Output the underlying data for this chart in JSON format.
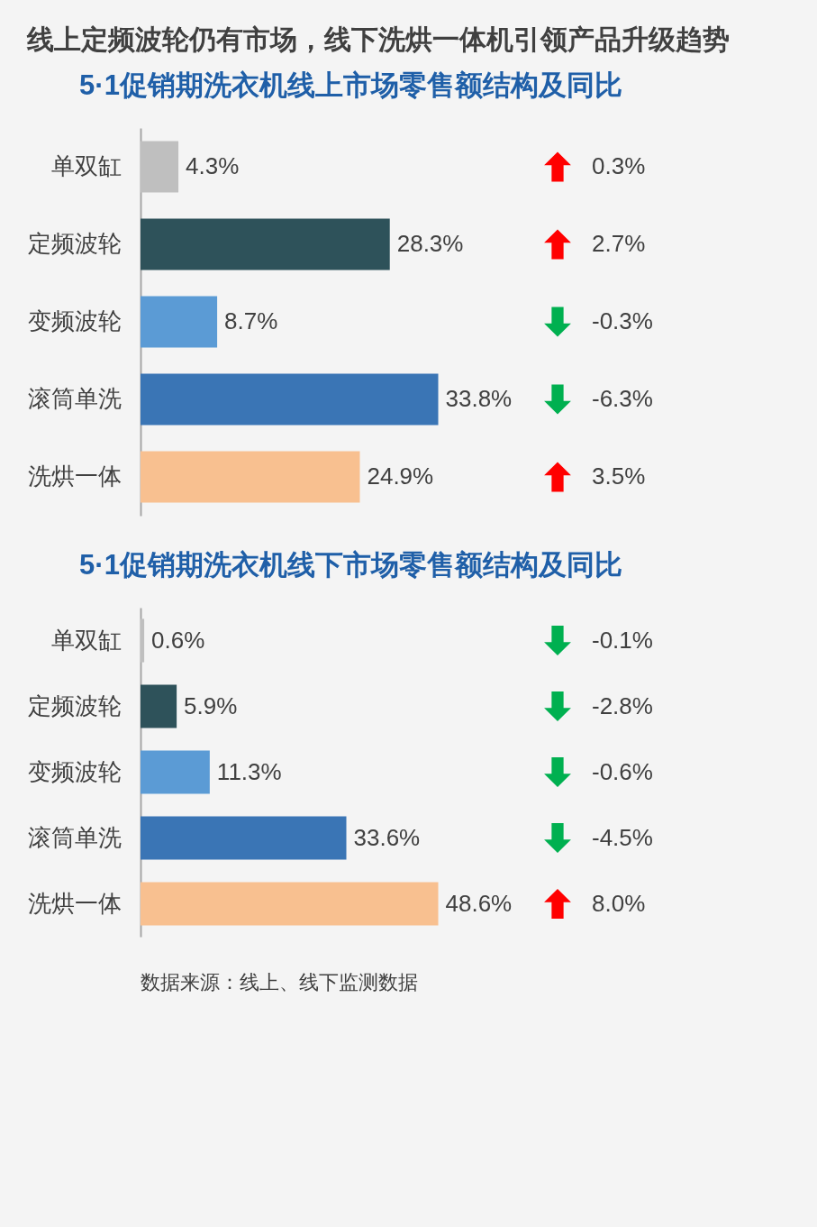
{
  "chart_data": [
    {
      "type": "bar",
      "orientation": "horizontal",
      "title": "线上定频波轮仍有市场，线下洗烘一体机引领产品升级趋势",
      "subtitle": "5·1促销期洗衣机线上市场零售额结构及同比",
      "categories": [
        "单双缸",
        "定频波轮",
        "变频波轮",
        "滚筒单洗",
        "洗烘一体"
      ],
      "values": [
        4.3,
        28.3,
        8.7,
        33.8,
        24.9
      ],
      "value_labels": [
        "4.3%",
        "28.3%",
        "8.7%",
        "33.8%",
        "24.9%"
      ],
      "colors": [
        "#bfbfbf",
        "#2e525a",
        "#5b9bd5",
        "#3a75b5",
        "#f8c090"
      ]
    },
    {
      "type": "other",
      "values": [
        0.3,
        2.7,
        -0.3,
        -6.3,
        3.5
      ],
      "value_labels": [
        "0.3%",
        "2.7%",
        "-0.3%",
        "-6.3%",
        "3.5%"
      ]
    },
    {
      "type": "bar",
      "orientation": "horizontal",
      "title": "5·1促销期洗衣机线下市场零售额结构及同比",
      "categories": [
        "单双缸",
        "定频波轮",
        "变频波轮",
        "滚筒单洗",
        "洗烘一体"
      ],
      "values": [
        0.6,
        5.9,
        11.3,
        33.6,
        48.6
      ],
      "value_labels": [
        "0.6%",
        "5.9%",
        "11.3%",
        "33.6%",
        "48.6%"
      ],
      "colors": [
        "#bfbfbf",
        "#2e525a",
        "#5b9bd5",
        "#3a75b5",
        "#f8c090"
      ],
      "annotations": [
        "数据来源：线上、线下监测数据"
      ]
    },
    {
      "type": "other",
      "values": [
        -0.1,
        -2.8,
        -0.6,
        -4.5,
        8.0
      ],
      "value_labels": [
        "-0.1%",
        "-2.8%",
        "-0.6%",
        "-4.5%",
        "8.0%"
      ]
    }
  ]
}
